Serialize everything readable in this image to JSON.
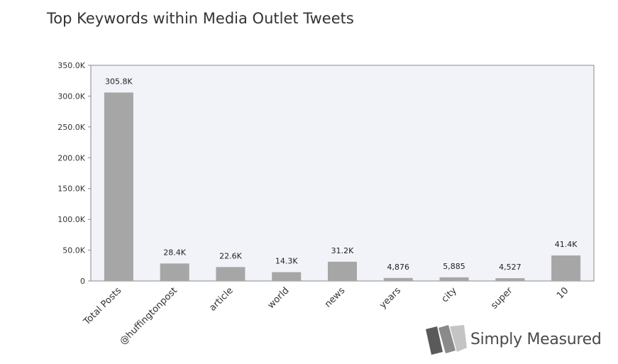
{
  "title": "Top Keywords within Media Outlet Tweets",
  "brand": {
    "name": "Simply Measured",
    "icon": "simply-measured-logo-icon"
  },
  "chart_data": {
    "type": "bar",
    "title": "Top Keywords within Media Outlet Tweets",
    "xlabel": "",
    "ylabel": "",
    "categories": [
      "Total Posts",
      "@huffingtonpost",
      "article",
      "world",
      "news",
      "years",
      "city",
      "super",
      "10"
    ],
    "values": [
      305800,
      28400,
      22600,
      14300,
      31200,
      4876,
      5885,
      4527,
      41400
    ],
    "data_labels": [
      "305.8K",
      "28.4K",
      "22.6K",
      "14.3K",
      "31.2K",
      "4,876",
      "5,885",
      "4,527",
      "41.4K"
    ],
    "ylim": [
      0,
      350000
    ],
    "yticks": [
      0,
      50000,
      100000,
      150000,
      200000,
      250000,
      300000,
      350000
    ],
    "ytick_labels": [
      "0",
      "50.0K",
      "100.0K",
      "150.0K",
      "200.0K",
      "250.0K",
      "300.0K",
      "350.0K"
    ],
    "grid": false,
    "legend": "none",
    "colors": {
      "bar": "#a6a6a6",
      "plot_bg": "#f2f3f9",
      "axis": "#888888"
    }
  }
}
